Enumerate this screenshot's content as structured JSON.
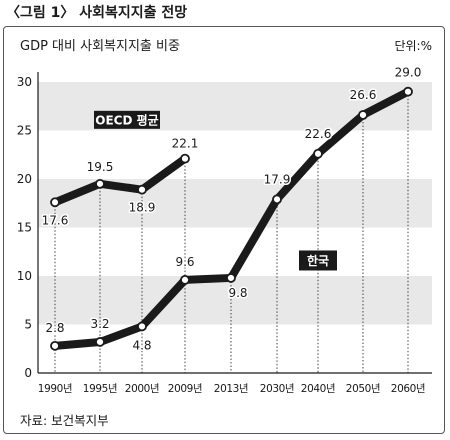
{
  "figure_title": "〈그림 1〉 사회복지지출 전망",
  "source": "자료: 보건복지부",
  "chart_data": {
    "type": "line",
    "title": "GDP 대비 사회복지지출 비중",
    "unit_label": "단위:%",
    "categories": [
      "1990년",
      "1995년",
      "2000년",
      "2009년",
      "2013년",
      "2030년",
      "2040년",
      "2050년",
      "2060년"
    ],
    "y_ticks": [
      0,
      5,
      10,
      15,
      20,
      25,
      30
    ],
    "ylim": [
      0,
      30
    ],
    "grid": "alternating horizontal bands",
    "series": [
      {
        "name": "OECD 평균",
        "values": [
          17.6,
          19.5,
          18.9,
          22.1,
          null,
          null,
          null,
          null,
          null
        ]
      },
      {
        "name": "한국",
        "values": [
          2.8,
          3.2,
          4.8,
          9.6,
          9.8,
          17.9,
          22.6,
          26.6,
          29.0
        ]
      }
    ],
    "data_labels": [
      [
        "17.6",
        "19.5",
        "18.9",
        "22.1",
        "",
        "",
        "",
        "",
        ""
      ],
      [
        "2.8",
        "3.2",
        "4.8",
        "9.6",
        "9.8",
        "17.9",
        "22.6",
        "26.6",
        "29.0"
      ]
    ],
    "colors": {
      "line": "#1a1a1a",
      "band": "#e8e8e8",
      "label_box": "#1a1a1a",
      "label_text": "#ffffff"
    }
  }
}
